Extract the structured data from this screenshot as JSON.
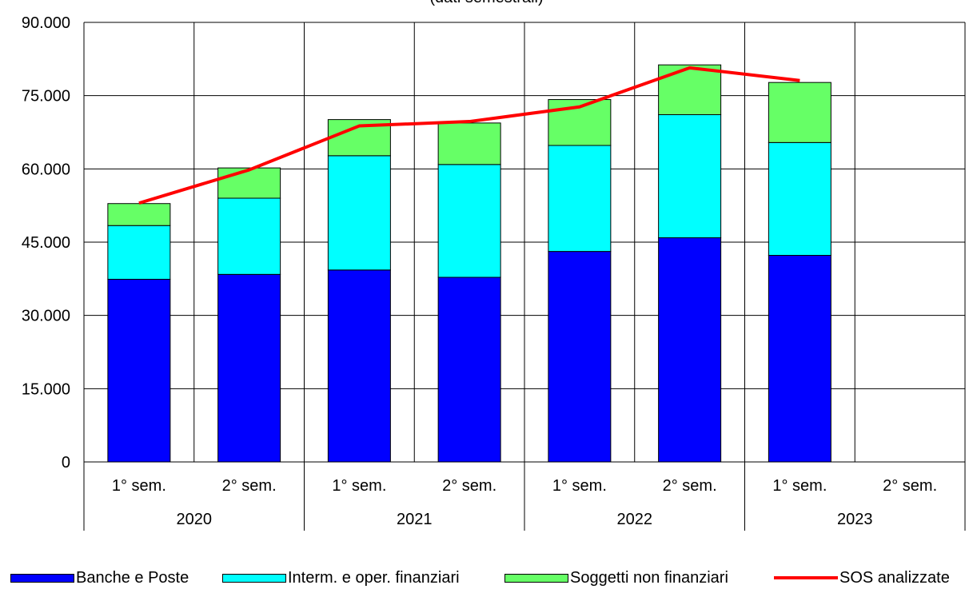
{
  "chart_data": {
    "type": "bar",
    "title": "(dati semestrali)",
    "periods": [
      "1° sem.",
      "2° sem.",
      "1° sem.",
      "2° sem.",
      "1° sem.",
      "2° sem.",
      "1° sem.",
      "2° sem."
    ],
    "years": [
      "2020",
      "2021",
      "2022",
      "2023"
    ],
    "ylim": [
      0,
      90000
    ],
    "yticks": [
      "0",
      "15.000",
      "30.000",
      "45.000",
      "60.000",
      "75.000",
      "90.000"
    ],
    "ytick_values": [
      0,
      15000,
      30000,
      45000,
      60000,
      75000,
      90000
    ],
    "stacked": true,
    "grid": true,
    "legend_position": "bottom",
    "series": [
      {
        "name": "Banche e Poste",
        "color": "#0000ff",
        "values": [
          37400,
          38400,
          39300,
          37800,
          43100,
          45900,
          42300,
          null
        ]
      },
      {
        "name": "Interm. e oper. finanziari",
        "color": "#00ffff",
        "values": [
          11000,
          15600,
          23400,
          23100,
          21700,
          25200,
          23100,
          null
        ]
      },
      {
        "name": "Soggetti non finanziari",
        "color": "#66ff66",
        "values": [
          4500,
          6200,
          7400,
          8500,
          9400,
          10200,
          12300,
          null
        ]
      }
    ],
    "line": {
      "name": "SOS analizzate",
      "color": "#ff0000",
      "values": [
        53000,
        59800,
        68800,
        69700,
        72700,
        80700,
        78100,
        null
      ]
    }
  }
}
